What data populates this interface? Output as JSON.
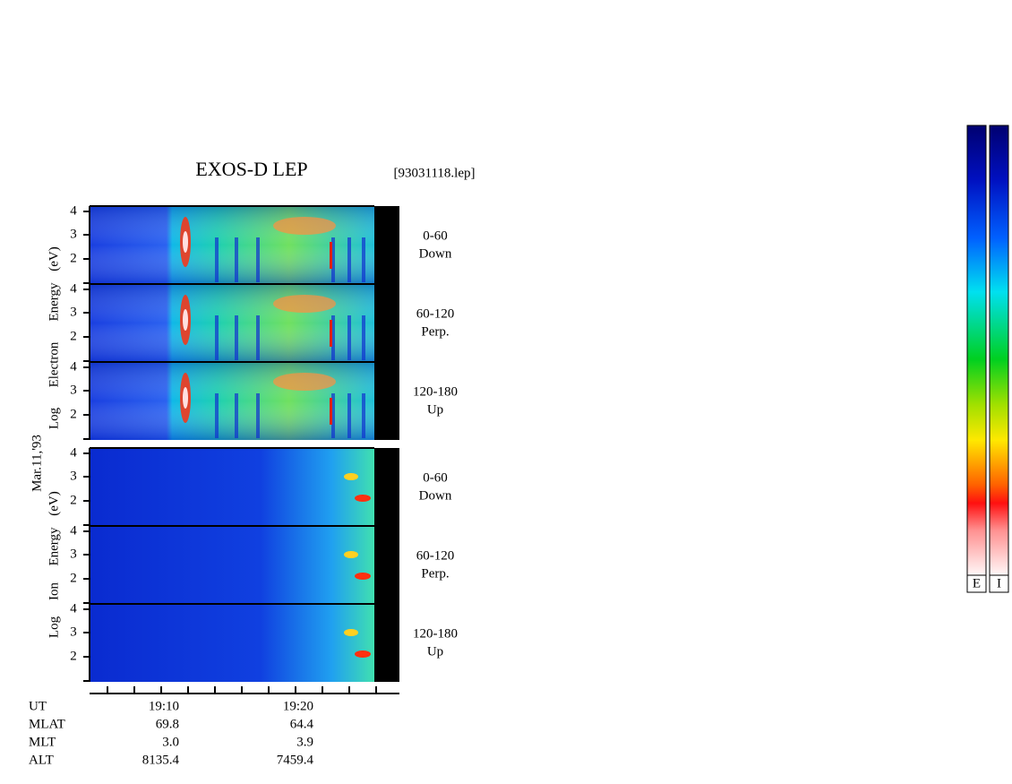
{
  "header": {
    "title": "EXOS-D LEP",
    "file": "[93031118.lep]"
  },
  "date": "Mar.11,'93",
  "electron_axis_label": [
    "Log",
    "Electron",
    "Energy",
    "(eV)"
  ],
  "ion_axis_label": [
    "Log",
    "Ion",
    "Energy",
    "(eV)"
  ],
  "panels": [
    {
      "yticks": [
        "4",
        "3",
        "2"
      ],
      "angle": "0-60",
      "direction": "Down"
    },
    {
      "yticks": [
        "4",
        "3",
        "2"
      ],
      "angle": "60-120",
      "direction": "Perp."
    },
    {
      "yticks": [
        "4",
        "3",
        "2"
      ],
      "angle": "120-180",
      "direction": "Up"
    },
    {
      "yticks": [
        "4",
        "3",
        "2"
      ],
      "angle": "0-60",
      "direction": "Down"
    },
    {
      "yticks": [
        "4",
        "3",
        "2"
      ],
      "angle": "60-120",
      "direction": "Perp."
    },
    {
      "yticks": [
        "4",
        "3",
        "2"
      ],
      "angle": "120-180",
      "direction": "Up"
    }
  ],
  "table": {
    "rows": [
      [
        "UT",
        "19:10",
        "19:20"
      ],
      [
        "MLAT",
        "69.8",
        "64.4"
      ],
      [
        "MLT",
        "3.0",
        "3.9"
      ],
      [
        "ALT",
        "8135.4",
        "7459.4"
      ]
    ]
  },
  "colorbars": [
    "E",
    "I"
  ]
}
